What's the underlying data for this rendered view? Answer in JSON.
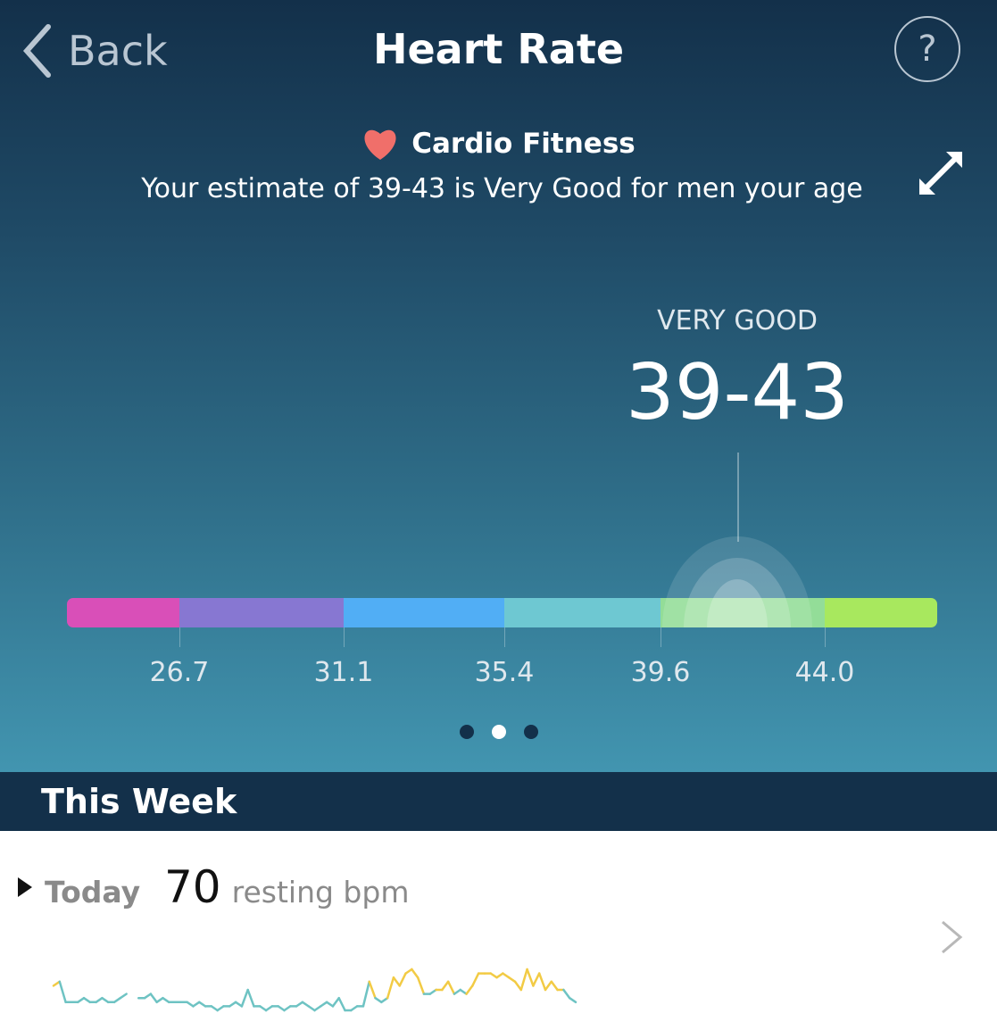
{
  "header": {
    "back_label": "Back",
    "title": "Heart Rate",
    "help_label": "?"
  },
  "cardio": {
    "icon": "heart-icon",
    "heading": "Cardio Fitness",
    "description": "Your estimate of 39-43 is Very Good for men your age",
    "rating": "VERY GOOD",
    "value": "39-43",
    "scale": {
      "segments": [
        {
          "color": "#d94fb8"
        },
        {
          "color": "#8777d2"
        },
        {
          "color": "#51aef5"
        },
        {
          "color": "#6ec8d2"
        },
        {
          "color": "#93dd98"
        },
        {
          "color": "#a8e85e"
        }
      ],
      "ticks": [
        "26.7",
        "31.1",
        "35.4",
        "39.6",
        "44.0"
      ]
    }
  },
  "pager": {
    "count": 3,
    "active": 2
  },
  "week": {
    "title": "This Week",
    "day": "Today",
    "resting_value": "70",
    "resting_unit": "resting bpm",
    "colors": {
      "low": "#6ec3c3",
      "high": "#f2cb45"
    },
    "sparkline": [
      6,
      7,
      2,
      2,
      2,
      3,
      2,
      2,
      3,
      2,
      2,
      3,
      4,
      null,
      3,
      3,
      4,
      2,
      3,
      2,
      2,
      2,
      2,
      1,
      2,
      1,
      1,
      0,
      1,
      1,
      2,
      1,
      5,
      1,
      1,
      0,
      1,
      1,
      0,
      1,
      1,
      2,
      1,
      0,
      1,
      2,
      1,
      3,
      0,
      0,
      1,
      1,
      7,
      3,
      2,
      3,
      8,
      6,
      9,
      10,
      8,
      4,
      4,
      5,
      5,
      7,
      4,
      5,
      4,
      6,
      9,
      9,
      9,
      8,
      9,
      8,
      7,
      5,
      10,
      6,
      9,
      5,
      7,
      5,
      5,
      3,
      2
    ]
  }
}
